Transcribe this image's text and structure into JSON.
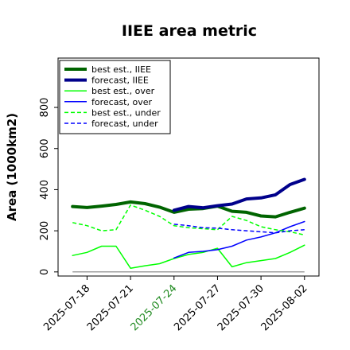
{
  "chart_data": {
    "type": "line",
    "title": "IIEE area metric",
    "xlabel": "",
    "ylabel": "Area (1000km2)",
    "ylim": [
      -20,
      1040
    ],
    "y_ticks": [
      0,
      200,
      400,
      600,
      800
    ],
    "x_ticks": [
      "2025-07-18",
      "2025-07-21",
      "2025-07-24",
      "2025-07-27",
      "2025-07-30",
      "2025-08-02"
    ],
    "x_tick_colors": [
      "#000000",
      "#000000",
      "#228b22",
      "#000000",
      "#000000",
      "#000000"
    ],
    "x_range": [
      "2025-07-16",
      "2025-08-03"
    ],
    "grid": false,
    "legend_position": "top-left",
    "zero_line_color": "#808080",
    "series": [
      {
        "name": "best est., IIEE",
        "color": "#006400",
        "style": "solid",
        "width": 4,
        "x": [
          "2025-07-17",
          "2025-07-18",
          "2025-07-19",
          "2025-07-20",
          "2025-07-21",
          "2025-07-22",
          "2025-07-23",
          "2025-07-24",
          "2025-07-25",
          "2025-07-26",
          "2025-07-27",
          "2025-07-28",
          "2025-07-29",
          "2025-07-30",
          "2025-07-31",
          "2025-08-01",
          "2025-08-02"
        ],
        "values": [
          318,
          313,
          320,
          328,
          340,
          332,
          315,
          290,
          305,
          308,
          320,
          295,
          290,
          272,
          268,
          290,
          310
        ]
      },
      {
        "name": "forecast, IIEE",
        "color": "#00008b",
        "style": "solid",
        "width": 4,
        "x": [
          "2025-07-24",
          "2025-07-25",
          "2025-07-26",
          "2025-07-27",
          "2025-07-28",
          "2025-07-29",
          "2025-07-30",
          "2025-07-31",
          "2025-08-01",
          "2025-08-02"
        ],
        "values": [
          300,
          318,
          312,
          322,
          330,
          355,
          360,
          375,
          425,
          450
        ]
      },
      {
        "name": "best est., over",
        "color": "#00ff00",
        "style": "solid",
        "width": 1.5,
        "x": [
          "2025-07-17",
          "2025-07-18",
          "2025-07-19",
          "2025-07-20",
          "2025-07-21",
          "2025-07-22",
          "2025-07-23",
          "2025-07-24",
          "2025-07-25",
          "2025-07-26",
          "2025-07-27",
          "2025-07-28",
          "2025-07-29",
          "2025-07-30",
          "2025-07-31",
          "2025-08-01",
          "2025-08-02"
        ],
        "values": [
          80,
          95,
          125,
          125,
          18,
          30,
          40,
          65,
          85,
          95,
          115,
          25,
          45,
          55,
          65,
          95,
          130
        ]
      },
      {
        "name": "forecast, over",
        "color": "#0000ff",
        "style": "solid",
        "width": 1.5,
        "x": [
          "2025-07-24",
          "2025-07-25",
          "2025-07-26",
          "2025-07-27",
          "2025-07-28",
          "2025-07-29",
          "2025-07-30",
          "2025-07-31",
          "2025-08-01",
          "2025-08-02"
        ],
        "values": [
          68,
          95,
          100,
          108,
          125,
          155,
          170,
          190,
          220,
          245
        ]
      },
      {
        "name": "best est., under",
        "color": "#00ff00",
        "style": "dashed",
        "width": 1.5,
        "x": [
          "2025-07-17",
          "2025-07-18",
          "2025-07-19",
          "2025-07-20",
          "2025-07-21",
          "2025-07-22",
          "2025-07-23",
          "2025-07-24",
          "2025-07-25",
          "2025-07-26",
          "2025-07-27",
          "2025-07-28",
          "2025-07-29",
          "2025-07-30",
          "2025-07-31",
          "2025-08-01",
          "2025-08-02"
        ],
        "values": [
          240,
          225,
          200,
          205,
          325,
          300,
          270,
          225,
          215,
          210,
          205,
          270,
          250,
          220,
          205,
          195,
          180
        ]
      },
      {
        "name": "forecast, under",
        "color": "#0000ff",
        "style": "dashed",
        "width": 1.5,
        "x": [
          "2025-07-24",
          "2025-07-25",
          "2025-07-26",
          "2025-07-27",
          "2025-07-28",
          "2025-07-29",
          "2025-07-30",
          "2025-07-31",
          "2025-08-01",
          "2025-08-02"
        ],
        "values": [
          232,
          225,
          215,
          213,
          205,
          200,
          195,
          190,
          200,
          205
        ]
      }
    ]
  }
}
